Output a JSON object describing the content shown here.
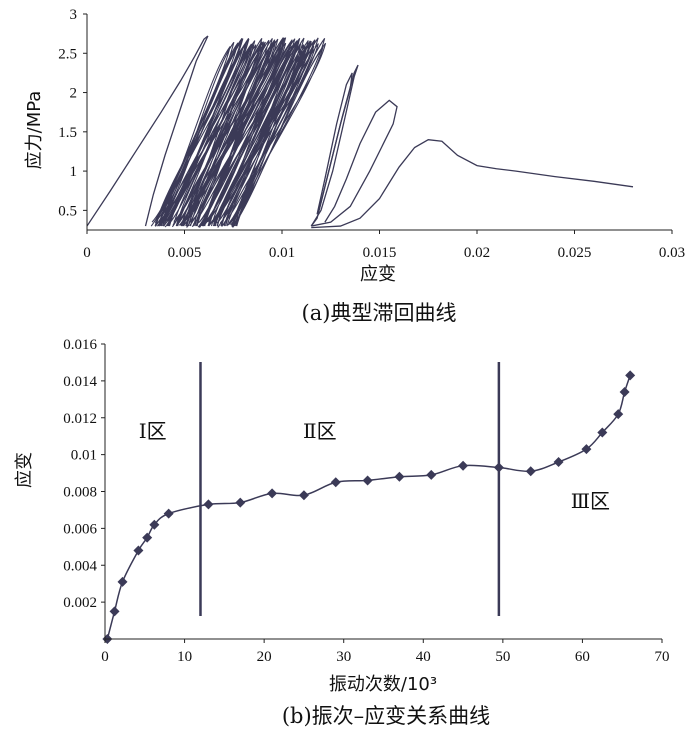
{
  "chart_data": [
    {
      "type": "line",
      "subtype": "hysteresis",
      "caption": "(a)典型滞回曲线",
      "xlabel": "应变",
      "ylabel": "应力/MPa",
      "xlim": [
        0,
        0.03
      ],
      "ylim": [
        0.25,
        3
      ],
      "xticks": [
        "0",
        "0.005",
        "0.01",
        "0.015",
        "0.02",
        "0.025",
        "0.03"
      ],
      "xtick_values": [
        0,
        0.005,
        0.01,
        0.015,
        0.02,
        0.025,
        0.03
      ],
      "yticks": [
        "0.5",
        "1",
        "1.5",
        "2",
        "2.5",
        "3"
      ],
      "ytick_values": [
        0.5,
        1,
        1.5,
        2,
        2.5,
        3
      ],
      "grid": false,
      "color": "#3b3a57",
      "curves": [
        {
          "name": "initial-loading",
          "x": [
            0,
            0.0012,
            0.0025,
            0.0038,
            0.0048,
            0.0055,
            0.006,
            0.0062
          ],
          "y": [
            0.3,
            0.75,
            1.25,
            1.75,
            2.15,
            2.45,
            2.68,
            2.72
          ]
        },
        {
          "name": "first-unloading",
          "x": [
            0.0062,
            0.0056,
            0.0048,
            0.004,
            0.0034,
            0.003
          ],
          "y": [
            2.72,
            2.4,
            1.8,
            1.2,
            0.7,
            0.3
          ]
        },
        {
          "name": "loop-large-1",
          "x": [
            0.0115,
            0.0118,
            0.0123,
            0.013,
            0.0135,
            0.0136,
            0.0133,
            0.0128,
            0.0122,
            0.0118
          ],
          "y": [
            0.3,
            0.4,
            0.9,
            1.6,
            2.05,
            2.25,
            2.1,
            1.6,
            0.9,
            0.45
          ]
        },
        {
          "name": "loop-large-2",
          "x": [
            0.0115,
            0.012,
            0.0126,
            0.0132,
            0.0137,
            0.0139,
            0.0137,
            0.0131,
            0.0124,
            0.0119
          ],
          "y": [
            0.3,
            0.5,
            1.0,
            1.65,
            2.2,
            2.35,
            2.25,
            1.7,
            1.0,
            0.5
          ]
        },
        {
          "name": "failure-loop",
          "x": [
            0.0115,
            0.0125,
            0.0135,
            0.0145,
            0.0152,
            0.0157,
            0.0159,
            0.0155,
            0.0148,
            0.014,
            0.0133,
            0.0127,
            0.0122
          ],
          "y": [
            0.3,
            0.35,
            0.55,
            1.0,
            1.35,
            1.6,
            1.82,
            1.9,
            1.75,
            1.35,
            0.9,
            0.55,
            0.35
          ]
        },
        {
          "name": "post-peak",
          "x": [
            0.0115,
            0.013,
            0.014,
            0.015,
            0.016,
            0.0168,
            0.0175,
            0.0182,
            0.019,
            0.02,
            0.021,
            0.022,
            0.024,
            0.026,
            0.028
          ],
          "y": [
            0.28,
            0.3,
            0.4,
            0.65,
            1.05,
            1.3,
            1.4,
            1.38,
            1.2,
            1.07,
            1.03,
            1.0,
            0.93,
            0.87,
            0.8
          ]
        }
      ],
      "dense_band": {
        "x_range": [
          0.003,
          0.0128
        ],
        "y_range": [
          0.28,
          2.7
        ],
        "loops": 60
      }
    },
    {
      "type": "line",
      "caption": "(b)振次–应变关系曲线",
      "xlabel": "振动次数/10³",
      "ylabel": "应变",
      "xlim": [
        0,
        70
      ],
      "ylim": [
        0,
        0.016
      ],
      "xticks": [
        "0",
        "10",
        "20",
        "30",
        "40",
        "50",
        "60",
        "70"
      ],
      "xtick_values": [
        0,
        10,
        20,
        30,
        40,
        50,
        60,
        70
      ],
      "yticks": [
        "0.002",
        "0.004",
        "0.006",
        "0.008",
        "0.01",
        "0.012",
        "0.014",
        "0.016"
      ],
      "ytick_values": [
        0.002,
        0.004,
        0.006,
        0.008,
        0.01,
        0.012,
        0.014,
        0.016
      ],
      "grid": false,
      "color": "#3b3a57",
      "series": [
        {
          "x": [
            0.3,
            1.2,
            2.2,
            4.2,
            5.3,
            6.2,
            8.0,
            13.0,
            17.0,
            21.0,
            25.0,
            29.0,
            33.0,
            37.0,
            41.0,
            45.0,
            49.5,
            53.5,
            57.0,
            60.5,
            62.5,
            64.5,
            65.3,
            66.0
          ],
          "y": [
            0.0,
            0.0015,
            0.0031,
            0.0048,
            0.0055,
            0.0062,
            0.0068,
            0.0073,
            0.0074,
            0.0079,
            0.0078,
            0.0085,
            0.0086,
            0.0088,
            0.0089,
            0.0094,
            0.0093,
            0.0091,
            0.0096,
            0.0103,
            0.0112,
            0.0122,
            0.0134,
            0.0143
          ]
        }
      ],
      "zone_lines": [
        12,
        49.5
      ],
      "zones": [
        {
          "label": "Ⅰ区",
          "x": 6,
          "y": 0.0109
        },
        {
          "label": "Ⅱ区",
          "x": 27,
          "y": 0.0109
        },
        {
          "label": "Ⅲ区",
          "x": 61,
          "y": 0.0071
        }
      ]
    }
  ]
}
